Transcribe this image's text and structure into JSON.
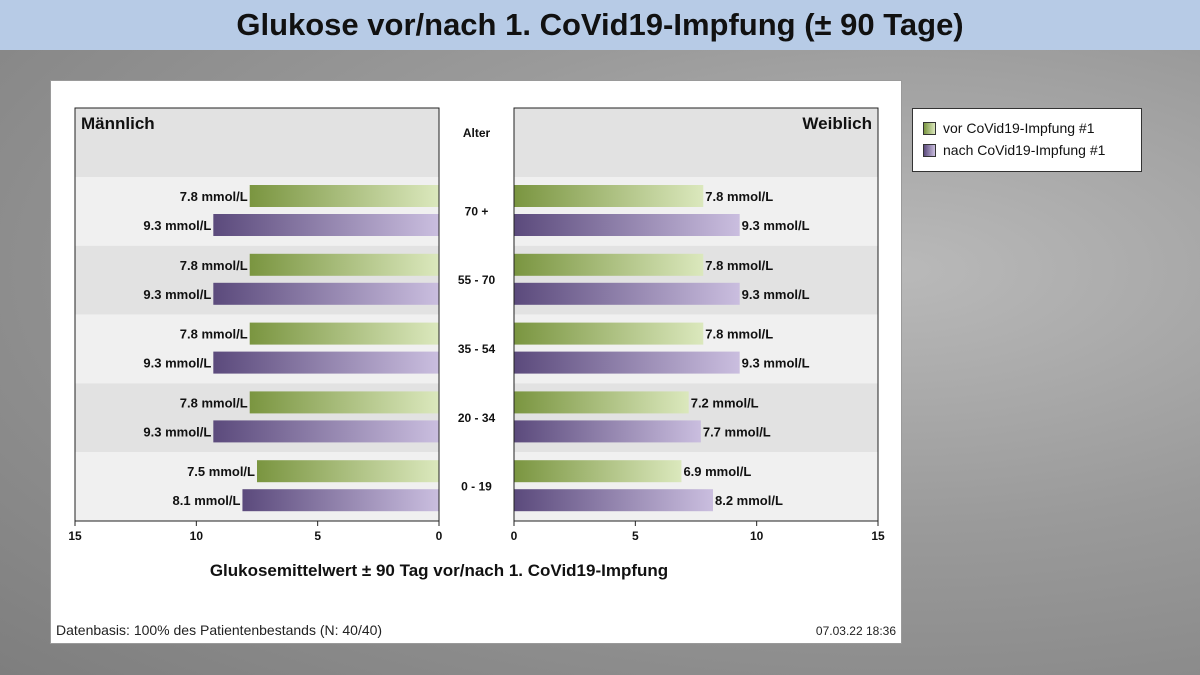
{
  "title": "Glukose vor/nach 1. CoVid19-Impfung (± 90 Tage)",
  "legend": {
    "vor": "vor CoVid19-Impfung #1",
    "nach": "nach CoVid19-Impfung #1"
  },
  "colors": {
    "vor_dark": "#7a9540",
    "vor_light": "#dbe8bd",
    "nach_dark": "#5b4a7c",
    "nach_light": "#cabedf",
    "band_light": "#f0f0f0",
    "band_dark": "#e2e2e2"
  },
  "footer": {
    "left": "Datenbasis: 100% des Patientenbestands (N: 40/40)",
    "right": "07.03.22 18:36"
  },
  "chart_data": {
    "type": "bar",
    "orientation": "horizontal-butterfly",
    "category_header": "Alter",
    "categories": [
      "70 +",
      "55 - 70",
      "35 - 54",
      "20 - 34",
      "0 - 19"
    ],
    "unit": "mmol/L",
    "xlabel": "Glukosemittelwert ± 90 Tag vor/nach 1. CoVid19-Impfung",
    "xlim": [
      0,
      15
    ],
    "xticks": [
      0,
      5,
      10,
      15
    ],
    "left_panel": {
      "title": "Männlich",
      "series": [
        {
          "name": "vor CoVid19-Impfung #1",
          "values": [
            7.8,
            7.8,
            7.8,
            7.8,
            7.5
          ]
        },
        {
          "name": "nach CoVid19-Impfung #1",
          "values": [
            9.3,
            9.3,
            9.3,
            9.3,
            8.1
          ]
        }
      ]
    },
    "right_panel": {
      "title": "Weiblich",
      "series": [
        {
          "name": "vor CoVid19-Impfung #1",
          "values": [
            7.8,
            7.8,
            7.8,
            7.2,
            6.9
          ]
        },
        {
          "name": "nach CoVid19-Impfung #1",
          "values": [
            9.3,
            9.3,
            9.3,
            7.7,
            8.2
          ]
        }
      ]
    }
  }
}
